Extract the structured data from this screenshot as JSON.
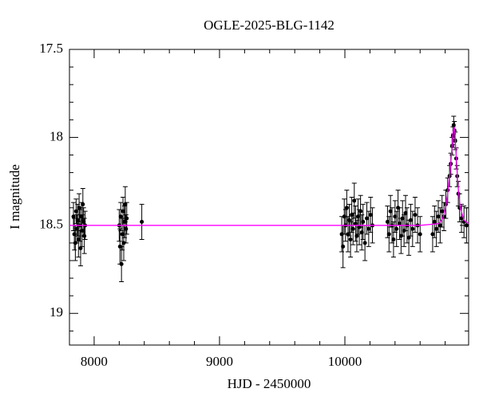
{
  "chart_data": {
    "type": "scatter",
    "title": "OGLE-2025-BLG-1142",
    "x_label": "HJD - 2450000",
    "y_label": "I magnitude",
    "xlim": [
      7803,
      10987
    ],
    "ylim": [
      17.5,
      19.18
    ],
    "y_inverted": true,
    "xticks": [
      8000,
      9000,
      10000
    ],
    "xminorticks": [
      8200,
      8400,
      8600,
      8800,
      9200,
      9400,
      9600,
      9800,
      10200,
      10400,
      10600,
      10800
    ],
    "yticks": [
      17.5,
      18,
      18.5,
      19
    ],
    "yminorticks": [
      17.6,
      17.7,
      17.8,
      17.9,
      18.1,
      18.2,
      18.3,
      18.4,
      18.6,
      18.7,
      18.8,
      18.9,
      19.1
    ],
    "points": {
      "color": "#000000",
      "x": [
        7835,
        7842,
        7850,
        7856,
        7862,
        7868,
        7875,
        7880,
        7886,
        7892,
        7898,
        7904,
        7910,
        7916,
        7922,
        7928,
        8200,
        8206,
        8212,
        8218,
        8224,
        8230,
        8236,
        8242,
        8248,
        8254,
        8260,
        8380,
        9975,
        9985,
        9995,
        10005,
        10015,
        10025,
        10035,
        10045,
        10055,
        10065,
        10075,
        10085,
        10095,
        10105,
        10115,
        10125,
        10135,
        10145,
        10160,
        10175,
        10190,
        10205,
        10220,
        10340,
        10352,
        10364,
        10376,
        10388,
        10400,
        10412,
        10424,
        10436,
        10448,
        10460,
        10472,
        10484,
        10496,
        10510,
        10525,
        10540,
        10560,
        10580,
        10600,
        10700,
        10715,
        10730,
        10745,
        10760,
        10775,
        10790,
        10805,
        10820,
        10835,
        10845,
        10855,
        10862,
        10868,
        10874,
        10880,
        10888,
        10896,
        10905,
        10915,
        10930,
        10950,
        10970
      ],
      "values": [
        18.45,
        18.55,
        18.6,
        18.42,
        18.52,
        18.47,
        18.58,
        18.4,
        18.5,
        18.63,
        18.45,
        18.53,
        18.38,
        18.48,
        18.56,
        18.5,
        18.5,
        18.62,
        18.45,
        18.72,
        18.55,
        18.42,
        18.6,
        18.48,
        18.38,
        18.52,
        18.46,
        18.48,
        18.55,
        18.62,
        18.45,
        18.5,
        18.4,
        18.55,
        18.47,
        18.58,
        18.44,
        18.52,
        18.36,
        18.49,
        18.56,
        18.45,
        18.51,
        18.42,
        18.54,
        18.48,
        18.6,
        18.46,
        18.52,
        18.44,
        18.5,
        18.48,
        18.55,
        18.42,
        18.5,
        18.58,
        18.45,
        18.52,
        18.4,
        18.49,
        18.56,
        18.46,
        18.53,
        18.43,
        18.5,
        18.57,
        18.47,
        18.52,
        18.44,
        18.5,
        18.55,
        18.55,
        18.48,
        18.52,
        18.45,
        18.5,
        18.42,
        18.45,
        18.38,
        18.3,
        18.22,
        18.15,
        18.05,
        17.99,
        17.93,
        17.96,
        18.02,
        18.12,
        18.22,
        18.32,
        18.4,
        18.46,
        18.48,
        18.5
      ],
      "errors": [
        0.08,
        0.09,
        0.1,
        0.07,
        0.08,
        0.09,
        0.1,
        0.08,
        0.09,
        0.1,
        0.08,
        0.09,
        0.09,
        0.08,
        0.1,
        0.08,
        0.09,
        0.1,
        0.08,
        0.1,
        0.09,
        0.08,
        0.1,
        0.09,
        0.1,
        0.08,
        0.09,
        0.1,
        0.1,
        0.12,
        0.1,
        0.09,
        0.1,
        0.1,
        0.09,
        0.1,
        0.1,
        0.09,
        0.1,
        0.1,
        0.09,
        0.1,
        0.1,
        0.09,
        0.1,
        0.1,
        0.1,
        0.09,
        0.1,
        0.1,
        0.1,
        0.09,
        0.1,
        0.09,
        0.1,
        0.1,
        0.09,
        0.1,
        0.1,
        0.09,
        0.1,
        0.1,
        0.09,
        0.1,
        0.1,
        0.1,
        0.09,
        0.1,
        0.1,
        0.1,
        0.1,
        0.1,
        0.09,
        0.1,
        0.09,
        0.1,
        0.09,
        0.08,
        0.08,
        0.07,
        0.06,
        0.06,
        0.05,
        0.05,
        0.05,
        0.05,
        0.05,
        0.06,
        0.06,
        0.07,
        0.08,
        0.08,
        0.09,
        0.1
      ]
    },
    "model": {
      "color": "#ff00ff",
      "x": [
        7803,
        10600,
        10750,
        10780,
        10800,
        10820,
        10840,
        10855,
        10865,
        10870,
        10875,
        10885,
        10900,
        10920,
        10950,
        10987
      ],
      "values": [
        18.5,
        18.5,
        18.49,
        18.46,
        18.41,
        18.32,
        18.19,
        18.05,
        17.96,
        17.94,
        17.96,
        18.07,
        18.26,
        18.4,
        18.47,
        18.49
      ]
    }
  }
}
